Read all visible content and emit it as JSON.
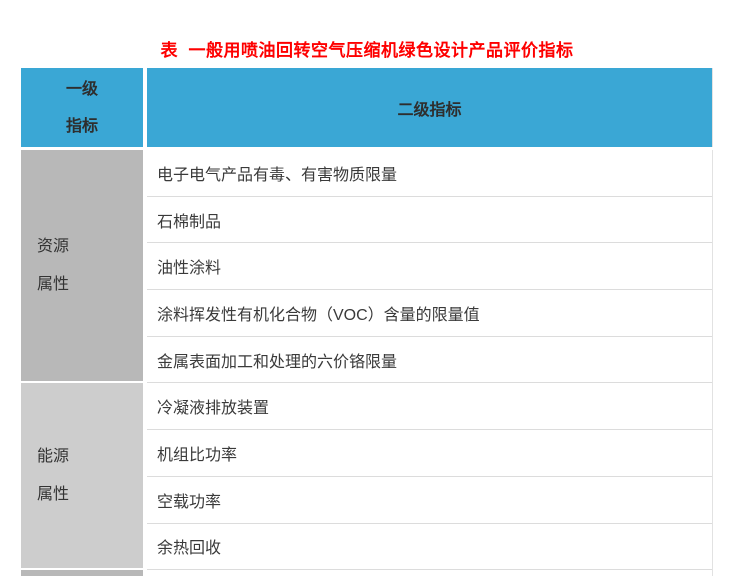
{
  "title": "表  一般用喷油回转空气压缩机绿色设计产品评价指标",
  "table": {
    "header": {
      "level1_line1": "一级",
      "level1_line2": "指标",
      "level2": "二级指标"
    },
    "groups": [
      {
        "label_line1": "资源",
        "label_line2": "属性",
        "items": [
          "电子电气产品有毒、有害物质限量",
          "石棉制品",
          "油性涂料",
          "涂料挥发性有机化合物（VOC）含量的限量值",
          "金属表面加工和处理的六价铬限量"
        ]
      },
      {
        "label_line1": "能源",
        "label_line2": "属性",
        "items": [
          "冷凝液排放装置",
          "机组比功率",
          "空载功率",
          "余热回收"
        ]
      }
    ]
  },
  "colors": {
    "header_blue": "#3aa7d5",
    "group_gray_dark": "#b8b8b8",
    "group_gray_light": "#cdcdcd",
    "title_red": "#fe0000",
    "row_separator": "#dcdcdc",
    "body_text": "#3a3a3a"
  }
}
